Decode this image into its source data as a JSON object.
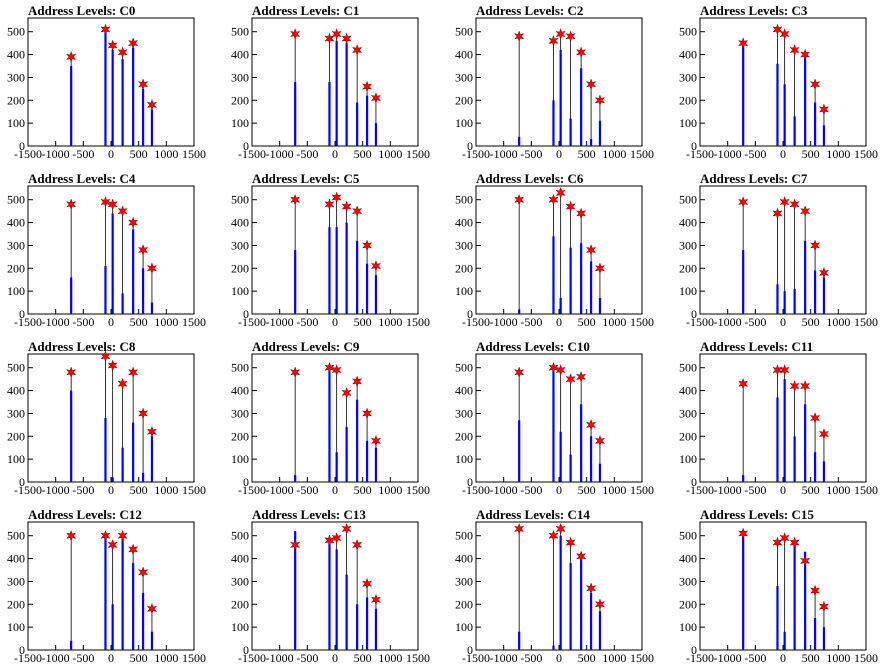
{
  "style": {
    "bar_color": "#0000ff",
    "marker_color": "#ff0000",
    "axis_color": "#000000"
  },
  "chart_data": [
    {
      "type": "bar",
      "title": "Address Levels: C0",
      "xlim": [
        -1500,
        1500
      ],
      "ylim": [
        0,
        560
      ],
      "xticks": [
        -1500,
        -1000,
        -500,
        0,
        500,
        1000,
        1500
      ],
      "yticks": [
        0,
        100,
        200,
        300,
        400,
        500
      ],
      "bars": [
        {
          "x": -720,
          "value": 350,
          "peak": 390
        },
        {
          "x": -100,
          "value": 510,
          "peak": 510
        },
        {
          "x": 30,
          "value": 420,
          "peak": 440
        },
        {
          "x": 210,
          "value": 380,
          "peak": 410
        },
        {
          "x": 400,
          "value": 430,
          "peak": 450
        },
        {
          "x": 580,
          "value": 250,
          "peak": 270
        },
        {
          "x": 740,
          "value": 160,
          "peak": 180
        }
      ]
    },
    {
      "type": "bar",
      "title": "Address Levels: C1",
      "xlim": [
        -1500,
        1500
      ],
      "ylim": [
        0,
        560
      ],
      "xticks": [
        -1500,
        -1000,
        -500,
        0,
        500,
        1000,
        1500
      ],
      "yticks": [
        0,
        100,
        200,
        300,
        400,
        500
      ],
      "bars": [
        {
          "x": -720,
          "value": 280,
          "peak": 490
        },
        {
          "x": -100,
          "value": 280,
          "peak": 470
        },
        {
          "x": 30,
          "value": 460,
          "peak": 490
        },
        {
          "x": 210,
          "value": 450,
          "peak": 470
        },
        {
          "x": 400,
          "value": 190,
          "peak": 420
        },
        {
          "x": 580,
          "value": 220,
          "peak": 260
        },
        {
          "x": 740,
          "value": 100,
          "peak": 210
        }
      ]
    },
    {
      "type": "bar",
      "title": "Address Levels: C2",
      "xlim": [
        -1500,
        1500
      ],
      "ylim": [
        0,
        560
      ],
      "xticks": [
        -1500,
        -1000,
        -500,
        0,
        500,
        1000,
        1500
      ],
      "yticks": [
        0,
        100,
        200,
        300,
        400,
        500
      ],
      "bars": [
        {
          "x": -720,
          "value": 40,
          "peak": 480
        },
        {
          "x": -100,
          "value": 200,
          "peak": 460
        },
        {
          "x": 30,
          "value": 420,
          "peak": 490
        },
        {
          "x": 210,
          "value": 120,
          "peak": 480
        },
        {
          "x": 400,
          "value": 340,
          "peak": 410
        },
        {
          "x": 580,
          "value": 30,
          "peak": 270
        },
        {
          "x": 740,
          "value": 110,
          "peak": 200
        }
      ]
    },
    {
      "type": "bar",
      "title": "Address Levels: C3",
      "xlim": [
        -1500,
        1500
      ],
      "ylim": [
        0,
        560
      ],
      "xticks": [
        -1500,
        -1000,
        -500,
        0,
        500,
        1000,
        1500
      ],
      "yticks": [
        0,
        100,
        200,
        300,
        400,
        500
      ],
      "bars": [
        {
          "x": -720,
          "value": 440,
          "peak": 450
        },
        {
          "x": -100,
          "value": 360,
          "peak": 510
        },
        {
          "x": 30,
          "value": 270,
          "peak": 490
        },
        {
          "x": 210,
          "value": 130,
          "peak": 420
        },
        {
          "x": 400,
          "value": 390,
          "peak": 400
        },
        {
          "x": 580,
          "value": 190,
          "peak": 270
        },
        {
          "x": 740,
          "value": 90,
          "peak": 160
        }
      ]
    },
    {
      "type": "bar",
      "title": "Address Levels: C4",
      "xlim": [
        -1500,
        1500
      ],
      "ylim": [
        0,
        560
      ],
      "xticks": [
        -1500,
        -1000,
        -500,
        0,
        500,
        1000,
        1500
      ],
      "yticks": [
        0,
        100,
        200,
        300,
        400,
        500
      ],
      "bars": [
        {
          "x": -720,
          "value": 160,
          "peak": 480
        },
        {
          "x": -100,
          "value": 210,
          "peak": 490
        },
        {
          "x": 30,
          "value": 440,
          "peak": 480
        },
        {
          "x": 210,
          "value": 90,
          "peak": 450
        },
        {
          "x": 400,
          "value": 370,
          "peak": 400
        },
        {
          "x": 580,
          "value": 200,
          "peak": 280
        },
        {
          "x": 740,
          "value": 50,
          "peak": 200
        }
      ]
    },
    {
      "type": "bar",
      "title": "Address Levels: C5",
      "xlim": [
        -1500,
        1500
      ],
      "ylim": [
        0,
        560
      ],
      "xticks": [
        -1500,
        -1000,
        -500,
        0,
        500,
        1000,
        1500
      ],
      "yticks": [
        0,
        100,
        200,
        300,
        400,
        500
      ],
      "bars": [
        {
          "x": -720,
          "value": 280,
          "peak": 500
        },
        {
          "x": -100,
          "value": 380,
          "peak": 480
        },
        {
          "x": 30,
          "value": 380,
          "peak": 510
        },
        {
          "x": 210,
          "value": 400,
          "peak": 470
        },
        {
          "x": 400,
          "value": 320,
          "peak": 450
        },
        {
          "x": 580,
          "value": 220,
          "peak": 300
        },
        {
          "x": 740,
          "value": 170,
          "peak": 210
        }
      ]
    },
    {
      "type": "bar",
      "title": "Address Levels: C6",
      "xlim": [
        -1500,
        1500
      ],
      "ylim": [
        0,
        560
      ],
      "xticks": [
        -1500,
        -1000,
        -500,
        0,
        500,
        1000,
        1500
      ],
      "yticks": [
        0,
        100,
        200,
        300,
        400,
        500
      ],
      "bars": [
        {
          "x": -720,
          "value": 20,
          "peak": 500
        },
        {
          "x": -100,
          "value": 340,
          "peak": 500
        },
        {
          "x": 30,
          "value": 70,
          "peak": 530
        },
        {
          "x": 210,
          "value": 290,
          "peak": 470
        },
        {
          "x": 400,
          "value": 310,
          "peak": 440
        },
        {
          "x": 580,
          "value": 230,
          "peak": 280
        },
        {
          "x": 740,
          "value": 70,
          "peak": 200
        }
      ]
    },
    {
      "type": "bar",
      "title": "Address Levels: C7",
      "xlim": [
        -1500,
        1500
      ],
      "ylim": [
        0,
        560
      ],
      "xticks": [
        -1500,
        -1000,
        -500,
        0,
        500,
        1000,
        1500
      ],
      "yticks": [
        0,
        100,
        200,
        300,
        400,
        500
      ],
      "bars": [
        {
          "x": -720,
          "value": 280,
          "peak": 490
        },
        {
          "x": -100,
          "value": 130,
          "peak": 440
        },
        {
          "x": 30,
          "value": 100,
          "peak": 490
        },
        {
          "x": 210,
          "value": 110,
          "peak": 480
        },
        {
          "x": 400,
          "value": 320,
          "peak": 450
        },
        {
          "x": 580,
          "value": 190,
          "peak": 300
        },
        {
          "x": 740,
          "value": 160,
          "peak": 180
        }
      ]
    },
    {
      "type": "bar",
      "title": "Address Levels: C8",
      "xlim": [
        -1500,
        1500
      ],
      "ylim": [
        0,
        560
      ],
      "xticks": [
        -1500,
        -1000,
        -500,
        0,
        500,
        1000,
        1500
      ],
      "yticks": [
        0,
        100,
        200,
        300,
        400,
        500
      ],
      "bars": [
        {
          "x": -720,
          "value": 400,
          "peak": 480
        },
        {
          "x": -100,
          "value": 280,
          "peak": 550
        },
        {
          "x": 30,
          "value": 20,
          "peak": 510
        },
        {
          "x": 210,
          "value": 150,
          "peak": 430
        },
        {
          "x": 400,
          "value": 260,
          "peak": 480
        },
        {
          "x": 580,
          "value": 40,
          "peak": 300
        },
        {
          "x": 740,
          "value": 200,
          "peak": 220
        }
      ]
    },
    {
      "type": "bar",
      "title": "Address Levels: C9",
      "xlim": [
        -1500,
        1500
      ],
      "ylim": [
        0,
        560
      ],
      "xticks": [
        -1500,
        -1000,
        -500,
        0,
        500,
        1000,
        1500
      ],
      "yticks": [
        0,
        100,
        200,
        300,
        400,
        500
      ],
      "bars": [
        {
          "x": -720,
          "value": 30,
          "peak": 480
        },
        {
          "x": -100,
          "value": 490,
          "peak": 500
        },
        {
          "x": 30,
          "value": 130,
          "peak": 490
        },
        {
          "x": 210,
          "value": 240,
          "peak": 390
        },
        {
          "x": 400,
          "value": 360,
          "peak": 440
        },
        {
          "x": 580,
          "value": 180,
          "peak": 300
        },
        {
          "x": 740,
          "value": 150,
          "peak": 180
        }
      ]
    },
    {
      "type": "bar",
      "title": "Address Levels: C10",
      "xlim": [
        -1500,
        1500
      ],
      "ylim": [
        0,
        560
      ],
      "xticks": [
        -1500,
        -1000,
        -500,
        0,
        500,
        1000,
        1500
      ],
      "yticks": [
        0,
        100,
        200,
        300,
        400,
        500
      ],
      "bars": [
        {
          "x": -720,
          "value": 270,
          "peak": 480
        },
        {
          "x": -100,
          "value": 490,
          "peak": 500
        },
        {
          "x": 30,
          "value": 220,
          "peak": 490
        },
        {
          "x": 210,
          "value": 120,
          "peak": 450
        },
        {
          "x": 400,
          "value": 340,
          "peak": 460
        },
        {
          "x": 580,
          "value": 200,
          "peak": 250
        },
        {
          "x": 740,
          "value": 80,
          "peak": 180
        }
      ]
    },
    {
      "type": "bar",
      "title": "Address Levels: C11",
      "xlim": [
        -1500,
        1500
      ],
      "ylim": [
        0,
        560
      ],
      "xticks": [
        -1500,
        -1000,
        -500,
        0,
        500,
        1000,
        1500
      ],
      "yticks": [
        0,
        100,
        200,
        300,
        400,
        500
      ],
      "bars": [
        {
          "x": -720,
          "value": 30,
          "peak": 430
        },
        {
          "x": -100,
          "value": 370,
          "peak": 490
        },
        {
          "x": 30,
          "value": 450,
          "peak": 490
        },
        {
          "x": 210,
          "value": 200,
          "peak": 420
        },
        {
          "x": 400,
          "value": 340,
          "peak": 420
        },
        {
          "x": 580,
          "value": 130,
          "peak": 280
        },
        {
          "x": 740,
          "value": 90,
          "peak": 210
        }
      ]
    },
    {
      "type": "bar",
      "title": "Address Levels: C12",
      "xlim": [
        -1500,
        1500
      ],
      "ylim": [
        0,
        560
      ],
      "xticks": [
        -1500,
        -1000,
        -500,
        0,
        500,
        1000,
        1500
      ],
      "yticks": [
        0,
        100,
        200,
        300,
        400,
        500
      ],
      "bars": [
        {
          "x": -720,
          "value": 40,
          "peak": 500
        },
        {
          "x": -100,
          "value": 490,
          "peak": 500
        },
        {
          "x": 30,
          "value": 200,
          "peak": 460
        },
        {
          "x": 210,
          "value": 490,
          "peak": 500
        },
        {
          "x": 400,
          "value": 380,
          "peak": 440
        },
        {
          "x": 580,
          "value": 250,
          "peak": 340
        },
        {
          "x": 740,
          "value": 80,
          "peak": 180
        }
      ]
    },
    {
      "type": "bar",
      "title": "Address Levels: C13",
      "xlim": [
        -1500,
        1500
      ],
      "ylim": [
        0,
        560
      ],
      "xticks": [
        -1500,
        -1000,
        -500,
        0,
        500,
        1000,
        1500
      ],
      "yticks": [
        0,
        100,
        200,
        300,
        400,
        500
      ],
      "bars": [
        {
          "x": -720,
          "value": 520,
          "peak": 460
        },
        {
          "x": -100,
          "value": 470,
          "peak": 480
        },
        {
          "x": 30,
          "value": 440,
          "peak": 490
        },
        {
          "x": 210,
          "value": 330,
          "peak": 530
        },
        {
          "x": 400,
          "value": 200,
          "peak": 460
        },
        {
          "x": 580,
          "value": 230,
          "peak": 290
        },
        {
          "x": 740,
          "value": 180,
          "peak": 220
        }
      ]
    },
    {
      "type": "bar",
      "title": "Address Levels: C14",
      "xlim": [
        -1500,
        1500
      ],
      "ylim": [
        0,
        560
      ],
      "xticks": [
        -1500,
        -1000,
        -500,
        0,
        500,
        1000,
        1500
      ],
      "yticks": [
        0,
        100,
        200,
        300,
        400,
        500
      ],
      "bars": [
        {
          "x": -720,
          "value": 80,
          "peak": 530
        },
        {
          "x": -100,
          "value": 20,
          "peak": 500
        },
        {
          "x": 30,
          "value": 500,
          "peak": 530
        },
        {
          "x": 210,
          "value": 380,
          "peak": 470
        },
        {
          "x": 400,
          "value": 400,
          "peak": 410
        },
        {
          "x": 580,
          "value": 250,
          "peak": 270
        },
        {
          "x": 740,
          "value": 170,
          "peak": 200
        }
      ]
    },
    {
      "type": "bar",
      "title": "Address Levels: C15",
      "xlim": [
        -1500,
        1500
      ],
      "ylim": [
        0,
        560
      ],
      "xticks": [
        -1500,
        -1000,
        -500,
        0,
        500,
        1000,
        1500
      ],
      "yticks": [
        0,
        100,
        200,
        300,
        400,
        500
      ],
      "bars": [
        {
          "x": -720,
          "value": 500,
          "peak": 510
        },
        {
          "x": -100,
          "value": 280,
          "peak": 470
        },
        {
          "x": 30,
          "value": 80,
          "peak": 490
        },
        {
          "x": 210,
          "value": 470,
          "peak": 470
        },
        {
          "x": 400,
          "value": 430,
          "peak": 390
        },
        {
          "x": 580,
          "value": 140,
          "peak": 260
        },
        {
          "x": 740,
          "value": 100,
          "peak": 190
        }
      ]
    }
  ]
}
